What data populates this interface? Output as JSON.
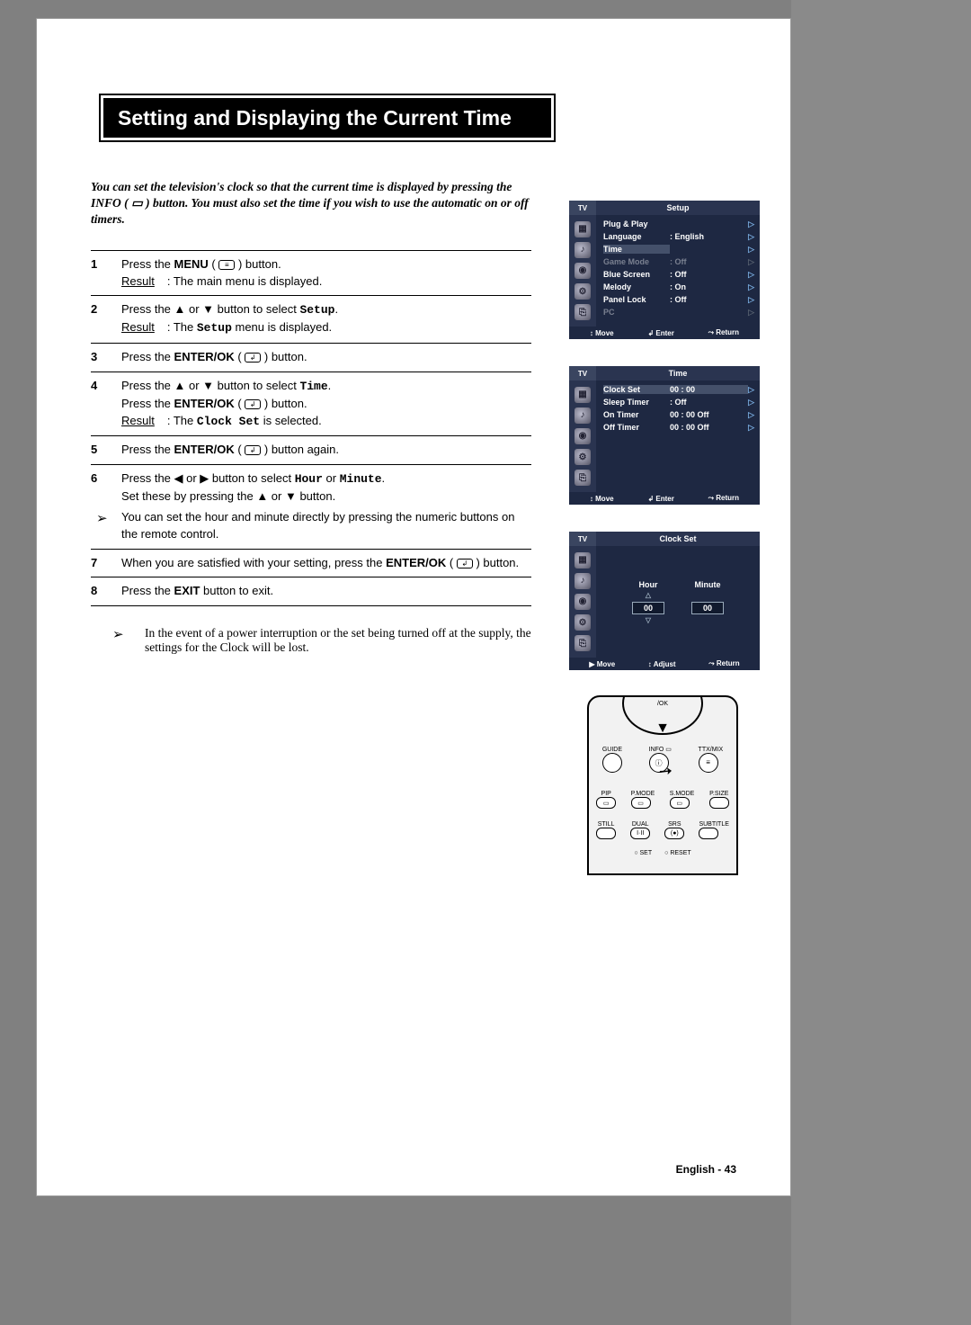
{
  "title": "Setting and Displaying the Current Time",
  "intro": "You can set the television's clock so that the current time is displayed by pressing the INFO ( ▭ ) button. You must also set the time if you wish to use the automatic on or off timers.",
  "steps": [
    {
      "num": "1",
      "lines": [
        "Press the <b>MENU</b> ( <span class='icon-inline'>≡</span> ) button."
      ],
      "result": "The main menu is displayed."
    },
    {
      "num": "2",
      "lines": [
        "Press the ▲ or ▼ button to select <span class='mono'>Setup</span>."
      ],
      "result": "The <span class='mono'>Setup</span> menu is displayed."
    },
    {
      "num": "3",
      "lines": [
        "Press the <b>ENTER/OK</b> ( <span class='icon-inline'>↲</span> ) button."
      ]
    },
    {
      "num": "4",
      "lines": [
        "Press the ▲ or ▼ button to select <span class='mono'>Time</span>.",
        "Press the <b>ENTER/OK</b> ( <span class='icon-inline'>↲</span> ) button."
      ],
      "result": "The <span class='mono'>Clock Set</span> is selected."
    },
    {
      "num": "5",
      "lines": [
        "Press the <b>ENTER/OK</b> ( <span class='icon-inline'>↲</span> ) button again."
      ]
    },
    {
      "num": "6",
      "lines": [
        "Press the ◀ or ▶ button to select <span class='mono'>Hour</span> or <span class='mono'>Minute</span>.",
        "Set these by pressing the ▲ or ▼ button."
      ],
      "note": "You can set the hour and minute directly by pressing the numeric buttons on the remote control."
    },
    {
      "num": "7",
      "lines": [
        "When you are satisfied with your setting, press the <b>ENTER/OK</b> ( <span class='icon-inline'>↲</span> ) button."
      ]
    },
    {
      "num": "8",
      "lines": [
        "Press the <b>EXIT</b> button to exit."
      ]
    }
  ],
  "footerNote": "In the event of a power interruption or the set being turned off at the supply, the settings for the Clock will be lost.",
  "pageNum": "English - 43",
  "osd1": {
    "tv": "TV",
    "title": "Setup",
    "items": [
      {
        "label": "Plug & Play",
        "val": "",
        "sel": false
      },
      {
        "label": "Language",
        "val": ": English",
        "sel": false
      },
      {
        "label": "Time",
        "val": "",
        "sel": true
      },
      {
        "label": "Game Mode",
        "val": ": Off",
        "dim": true
      },
      {
        "label": "Blue Screen",
        "val": ": Off",
        "sel": false
      },
      {
        "label": "Melody",
        "val": ": On",
        "sel": false
      },
      {
        "label": "Panel Lock",
        "val": ": Off",
        "sel": false
      },
      {
        "label": "PC",
        "val": "",
        "dim": true
      }
    ],
    "foot": [
      "↕ Move",
      "↲ Enter",
      "⤳ Return"
    ]
  },
  "osd2": {
    "tv": "TV",
    "title": "Time",
    "items": [
      {
        "label": "Clock Set",
        "val": "00 : 00",
        "sel": true
      },
      {
        "label": "Sleep Timer",
        "val": ": Off",
        "sel": false
      },
      {
        "label": "On Timer",
        "val": "00 : 00   Off",
        "sel": false
      },
      {
        "label": "Off Timer",
        "val": "00 : 00   Off",
        "sel": false
      }
    ],
    "foot": [
      "↕ Move",
      "↲ Enter",
      "⤳ Return"
    ]
  },
  "osd3": {
    "tv": "TV",
    "title": "Clock Set",
    "hourLabel": "Hour",
    "hourVal": "00",
    "minLabel": "Minute",
    "minVal": "00",
    "foot": [
      "▶ Move",
      "↕ Adjust",
      "⤳ Return"
    ]
  },
  "remote": {
    "ok": "/OK",
    "r1": [
      "GUIDE",
      "INFO ▭",
      "TTX/MIX"
    ],
    "r3": [
      "PIP",
      "P.MODE",
      "S.MODE",
      "P.SIZE"
    ],
    "r4": [
      "STILL",
      "DUAL",
      "SRS",
      "SUBTITLE"
    ],
    "r4b": [
      "",
      "I·II",
      "(●)",
      ""
    ],
    "r5": [
      "○ SET",
      "○ RESET"
    ]
  }
}
